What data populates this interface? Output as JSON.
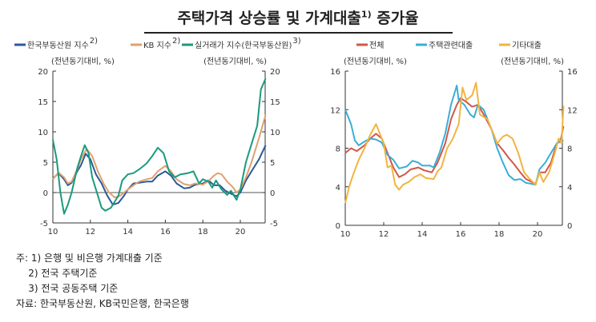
{
  "title": "주택가격 상승률 및 가계대출",
  "title_sup": "1)",
  "title_tail": " 증가율",
  "chart_data": [
    {
      "type": "line",
      "unit_left": "(전년동기대비, %)",
      "unit_right": "(전년동기대비, %)",
      "xlim": [
        10,
        21.4
      ],
      "ylim": [
        -5,
        20
      ],
      "xticks": [
        "10",
        "12",
        "14",
        "16",
        "18",
        "20"
      ],
      "yticks": [
        "-5",
        "0",
        "5",
        "10",
        "15",
        "20"
      ],
      "legend": "top",
      "grid": false,
      "series": [
        {
          "name": "한국부동산원 지수",
          "sup": "2)",
          "color": "#2b5a97",
          "x": [
            10.0,
            10.3,
            10.6,
            10.8,
            11.0,
            11.3,
            11.5,
            11.75,
            12.0,
            12.3,
            12.6,
            12.9,
            13.2,
            13.5,
            13.8,
            14.0,
            14.3,
            14.6,
            15.0,
            15.3,
            15.6,
            16.0,
            16.3,
            16.6,
            17.0,
            17.3,
            17.6,
            18.0,
            18.3,
            18.6,
            18.9,
            19.2,
            19.5,
            19.8,
            20.0,
            20.3,
            20.6,
            21.0,
            21.35
          ],
          "y": [
            2.3,
            3.2,
            2.2,
            1.2,
            1.6,
            3.5,
            4.5,
            6.4,
            5.5,
            3,
            1.5,
            -0.5,
            -2.0,
            -1.7,
            -0.5,
            0.5,
            1.5,
            1.6,
            1.8,
            1.8,
            2.8,
            3.5,
            2.8,
            1.5,
            0.7,
            0.8,
            1.3,
            1.5,
            2.0,
            1.2,
            1.2,
            0.3,
            -0.2,
            -0.6,
            0,
            2,
            3.5,
            5.5,
            7.8
          ]
        },
        {
          "name": "KB 지수",
          "sup": "2)",
          "color": "#e0a070",
          "x": [
            10.0,
            10.3,
            10.6,
            10.8,
            11.0,
            11.3,
            11.5,
            11.8,
            12.1,
            12.4,
            12.7,
            13.0,
            13.3,
            13.6,
            14.0,
            14.3,
            14.6,
            15.0,
            15.3,
            15.6,
            16.0,
            16.3,
            16.6,
            17.0,
            17.3,
            17.6,
            18.0,
            18.3,
            18.6,
            18.8,
            19.0,
            19.3,
            19.6,
            19.8,
            20.0,
            20.3,
            20.6,
            21.0,
            21.35
          ],
          "y": [
            2.2,
            3.3,
            2.5,
            1.5,
            1.8,
            3.8,
            5.5,
            7.2,
            6,
            3.5,
            1.5,
            0,
            -0.8,
            -0.5,
            0.5,
            1.2,
            1.8,
            2.2,
            2.4,
            3.5,
            4.4,
            3.5,
            2.2,
            1.4,
            1.2,
            1.5,
            1.3,
            1.9,
            2.8,
            3.2,
            3.0,
            1.8,
            0.9,
            0,
            0.5,
            2.5,
            5,
            9,
            12.8
          ]
        },
        {
          "name": "실거래가 지수(한국부동산원)",
          "sup": "3)",
          "color": "#1a9a7c",
          "x": [
            10.0,
            10.2,
            10.4,
            10.6,
            10.8,
            11.0,
            11.3,
            11.5,
            11.7,
            11.9,
            12.1,
            12.4,
            12.6,
            12.8,
            13.1,
            13.3,
            13.5,
            13.7,
            14.0,
            14.3,
            14.6,
            15.0,
            15.3,
            15.6,
            15.9,
            16.2,
            16.5,
            16.8,
            17.2,
            17.5,
            17.8,
            18.0,
            18.3,
            18.5,
            18.7,
            19.0,
            19.3,
            19.5,
            19.8,
            20.0,
            20.3,
            20.6,
            20.9,
            21.1,
            21.35
          ],
          "y": [
            8.7,
            5.5,
            0,
            -3.5,
            -2,
            0,
            4,
            6,
            7.8,
            6.5,
            2.5,
            -0.5,
            -2.5,
            -3,
            -2.5,
            -1.5,
            -0.5,
            2,
            3,
            3.2,
            3.8,
            4.8,
            6,
            7.4,
            6.5,
            3.5,
            2.5,
            3.0,
            3.2,
            3.5,
            1.5,
            2.2,
            1.8,
            0.8,
            2,
            0.5,
            -0.4,
            0.3,
            -1.2,
            0.5,
            5,
            8,
            11,
            17,
            18.8
          ]
        }
      ]
    },
    {
      "type": "line",
      "unit_left": "(전년동기대비, %)",
      "unit_right": "(전년동기대비, %)",
      "xlim": [
        10,
        21.4
      ],
      "ylim": [
        0,
        16
      ],
      "xticks": [
        "10",
        "12",
        "14",
        "16",
        "18",
        "20"
      ],
      "yticks": [
        "0",
        "4",
        "8",
        "12",
        "16"
      ],
      "legend": "top",
      "grid": false,
      "series": [
        {
          "name": "전체",
          "color": "#d0574a",
          "x": [
            10.0,
            10.3,
            10.6,
            11.0,
            11.3,
            11.6,
            11.9,
            12.2,
            12.5,
            12.8,
            13.1,
            13.4,
            13.8,
            14.1,
            14.5,
            14.8,
            15.2,
            15.5,
            15.8,
            16.0,
            16.3,
            16.6,
            16.9,
            17.2,
            17.6,
            17.9,
            18.2,
            18.5,
            18.8,
            19.1,
            19.4,
            19.7,
            19.9,
            20.1,
            20.4,
            20.7,
            21.0,
            21.2,
            21.35
          ],
          "y": [
            7.5,
            8,
            7.7,
            8.3,
            9,
            9.5,
            9,
            7.5,
            6,
            5,
            5.3,
            5.8,
            6,
            5.7,
            5.5,
            6.5,
            8.5,
            11,
            12.5,
            13.2,
            12.8,
            12.3,
            12.5,
            11.5,
            10,
            8.5,
            7.8,
            7,
            6.3,
            5.5,
            4.8,
            4.5,
            4.3,
            5.5,
            5.5,
            6.5,
            8.5,
            8.8,
            10.3
          ]
        },
        {
          "name": "주택관련대출",
          "color": "#3aaed6",
          "x": [
            10.0,
            10.3,
            10.5,
            10.7,
            11.0,
            11.3,
            11.6,
            11.9,
            12.2,
            12.5,
            12.8,
            13.2,
            13.5,
            13.8,
            14.0,
            14.4,
            14.6,
            14.9,
            15.2,
            15.5,
            15.8,
            15.9,
            16.2,
            16.5,
            16.7,
            16.9,
            17.2,
            17.6,
            17.9,
            18.2,
            18.5,
            18.8,
            19.1,
            19.4,
            19.7,
            19.9,
            20.1,
            20.4,
            20.7,
            21.0,
            21.35
          ],
          "y": [
            12,
            10.5,
            8.8,
            8.3,
            8.7,
            9,
            8.9,
            8.6,
            7.3,
            6.8,
            5.9,
            6.1,
            6.7,
            6.5,
            6.2,
            6.2,
            6.0,
            7.5,
            9.5,
            12.5,
            14.5,
            13,
            12.5,
            11.5,
            11.2,
            12.5,
            12,
            10,
            8,
            6.5,
            5.2,
            4.7,
            4.8,
            4.4,
            4.3,
            4.2,
            5.8,
            6.5,
            7.5,
            8.5,
            8.8
          ]
        },
        {
          "name": "기타대출",
          "color": "#f2b440",
          "x": [
            10.0,
            10.2,
            10.4,
            10.7,
            11.0,
            11.3,
            11.6,
            11.8,
            12.0,
            12.2,
            12.4,
            12.6,
            12.8,
            13.0,
            13.3,
            13.6,
            13.9,
            14.2,
            14.6,
            14.8,
            15.0,
            15.3,
            15.6,
            15.9,
            16.1,
            16.3,
            16.6,
            16.8,
            17.0,
            17.4,
            17.7,
            17.9,
            18.2,
            18.4,
            18.7,
            19.0,
            19.3,
            19.6,
            19.9,
            20.1,
            20.3,
            20.6,
            20.9,
            21.1,
            21.25,
            21.35
          ],
          "y": [
            2.3,
            4,
            5.2,
            6.8,
            8,
            9.4,
            10.5,
            9.5,
            8.5,
            6,
            6.2,
            4.2,
            3.7,
            4.2,
            4.5,
            5,
            5.3,
            4.9,
            4.8,
            5.6,
            6.0,
            8,
            9,
            10.5,
            14.3,
            13,
            13.5,
            14.8,
            11.5,
            11,
            9.5,
            8.5,
            9.2,
            9.4,
            9,
            7.5,
            5.5,
            4.8,
            4.2,
            5.5,
            4.5,
            5.5,
            7.5,
            9,
            8.5,
            12.4
          ]
        }
      ]
    }
  ],
  "notes": [
    "주: 1) 은행 및 비은행 가계대출 기준",
    "    2) 전국 주택기준",
    "    3) 전국 공동주택 기준",
    "자료: 한국부동산원, KB국민은행, 한국은행"
  ]
}
